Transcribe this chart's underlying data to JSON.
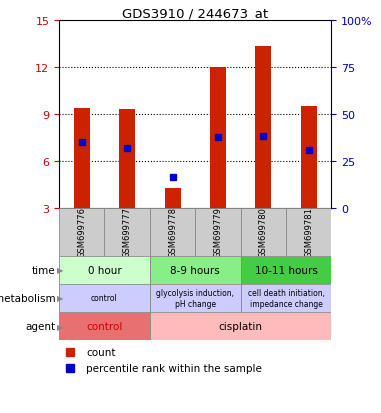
{
  "title": "GDS3910 / 244673_at",
  "samples": [
    "GSM699776",
    "GSM699777",
    "GSM699778",
    "GSM699779",
    "GSM699780",
    "GSM699781"
  ],
  "bar_values": [
    9.4,
    9.3,
    4.3,
    12.0,
    13.3,
    9.5
  ],
  "percentile_values": [
    7.2,
    6.8,
    5.0,
    7.5,
    7.6,
    6.7
  ],
  "ylim_left": [
    3,
    15
  ],
  "ylim_right": [
    0,
    100
  ],
  "yticks_left": [
    3,
    6,
    9,
    12,
    15
  ],
  "yticks_right": [
    0,
    25,
    50,
    75,
    100
  ],
  "bar_color": "#cc2200",
  "percentile_color": "#0000cc",
  "bar_width": 0.35,
  "time_groups": [
    [
      0,
      2,
      "0 hour"
    ],
    [
      2,
      4,
      "8-9 hours"
    ],
    [
      4,
      6,
      "10-11 hours"
    ]
  ],
  "time_colors": [
    "#ccffcc",
    "#88ee88",
    "#44cc44"
  ],
  "metab_groups": [
    [
      0,
      2,
      "control"
    ],
    [
      2,
      4,
      "glycolysis induction,\npH change"
    ],
    [
      4,
      6,
      "cell death initiation,\nimpedance change"
    ]
  ],
  "metab_color": "#ccccff",
  "agent_groups": [
    [
      0,
      2,
      "control",
      "#e87070"
    ],
    [
      2,
      6,
      "cisplatin",
      "#ffbbbb"
    ]
  ],
  "row_labels": [
    "time",
    "metabolism",
    "agent"
  ],
  "left_axis_color": "#cc0000",
  "right_axis_color": "#0000bb",
  "dotted_lines": [
    6,
    9,
    12
  ],
  "legend_items": [
    [
      "#cc2200",
      "count"
    ],
    [
      "#0000cc",
      "percentile rank within the sample"
    ]
  ]
}
